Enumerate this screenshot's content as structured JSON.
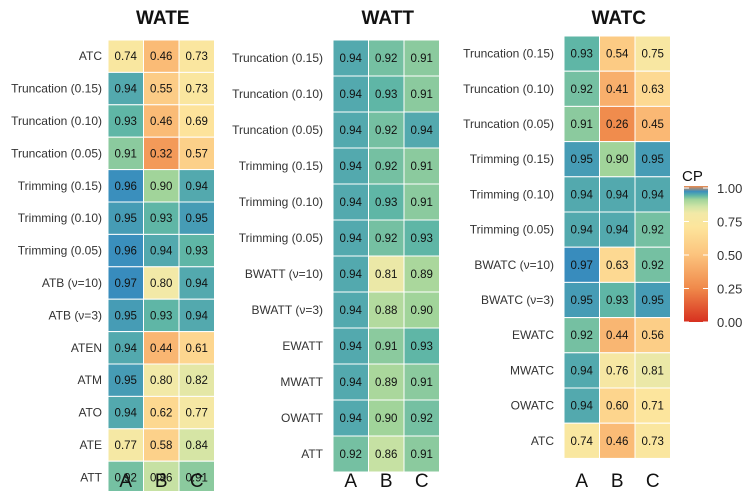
{
  "chart_data": {
    "type": "heatmap",
    "colorbar": {
      "title": "CP",
      "ticks": [
        "1.00",
        "0.75",
        "0.50",
        "0.25",
        "0.00"
      ],
      "range": [
        0,
        1
      ]
    },
    "columns": [
      "A",
      "B",
      "C"
    ],
    "panels": [
      {
        "title": "WATE",
        "rows": [
          {
            "label": "ATC",
            "values": [
              0.74,
              0.46,
              0.73
            ]
          },
          {
            "label": "Truncation (0.15)",
            "values": [
              0.94,
              0.55,
              0.73
            ]
          },
          {
            "label": "Truncation (0.10)",
            "values": [
              0.93,
              0.46,
              0.69
            ]
          },
          {
            "label": "Truncation (0.05)",
            "values": [
              0.91,
              0.32,
              0.57
            ]
          },
          {
            "label": "Trimming (0.15)",
            "values": [
              0.96,
              0.9,
              0.94
            ]
          },
          {
            "label": "Trimming (0.10)",
            "values": [
              0.95,
              0.93,
              0.95
            ]
          },
          {
            "label": "Trimming (0.05)",
            "values": [
              0.96,
              0.94,
              0.93
            ]
          },
          {
            "label": "ATB (ν=10)",
            "values": [
              0.97,
              0.8,
              0.94
            ]
          },
          {
            "label": "ATB (ν=3)",
            "values": [
              0.95,
              0.93,
              0.94
            ]
          },
          {
            "label": "ATEN",
            "values": [
              0.94,
              0.44,
              0.61
            ]
          },
          {
            "label": "ATM",
            "values": [
              0.95,
              0.8,
              0.82
            ]
          },
          {
            "label": "ATO",
            "values": [
              0.94,
              0.62,
              0.77
            ]
          },
          {
            "label": "ATE",
            "values": [
              0.77,
              0.58,
              0.84
            ]
          },
          {
            "label": "ATT",
            "values": [
              0.92,
              0.86,
              0.91
            ]
          }
        ]
      },
      {
        "title": "WATT",
        "rows": [
          {
            "label": "Truncation (0.15)",
            "values": [
              0.94,
              0.92,
              0.91
            ]
          },
          {
            "label": "Truncation (0.10)",
            "values": [
              0.94,
              0.93,
              0.91
            ]
          },
          {
            "label": "Truncation (0.05)",
            "values": [
              0.94,
              0.92,
              0.94
            ]
          },
          {
            "label": "Trimming (0.15)",
            "values": [
              0.94,
              0.92,
              0.91
            ]
          },
          {
            "label": "Trimming (0.10)",
            "values": [
              0.94,
              0.93,
              0.91
            ]
          },
          {
            "label": "Trimming (0.05)",
            "values": [
              0.94,
              0.92,
              0.93
            ]
          },
          {
            "label": "BWATT (ν=10)",
            "values": [
              0.94,
              0.81,
              0.89
            ]
          },
          {
            "label": "BWATT (ν=3)",
            "values": [
              0.94,
              0.88,
              0.9
            ]
          },
          {
            "label": "EWATT",
            "values": [
              0.94,
              0.91,
              0.93
            ]
          },
          {
            "label": "MWATT",
            "values": [
              0.94,
              0.89,
              0.91
            ]
          },
          {
            "label": "OWATT",
            "values": [
              0.94,
              0.9,
              0.92
            ]
          },
          {
            "label": "ATT",
            "values": [
              0.92,
              0.86,
              0.91
            ]
          }
        ]
      },
      {
        "title": "WATC",
        "rows": [
          {
            "label": "Truncation (0.15)",
            "values": [
              0.93,
              0.54,
              0.75
            ]
          },
          {
            "label": "Truncation (0.10)",
            "values": [
              0.92,
              0.41,
              0.63
            ]
          },
          {
            "label": "Truncation (0.05)",
            "values": [
              0.91,
              0.26,
              0.45
            ]
          },
          {
            "label": "Trimming (0.15)",
            "values": [
              0.95,
              0.9,
              0.95
            ]
          },
          {
            "label": "Trimming (0.10)",
            "values": [
              0.94,
              0.94,
              0.94
            ]
          },
          {
            "label": "Trimming (0.05)",
            "values": [
              0.94,
              0.94,
              0.92
            ]
          },
          {
            "label": "BWATC (ν=10)",
            "values": [
              0.97,
              0.63,
              0.92
            ]
          },
          {
            "label": "BWATC (ν=3)",
            "values": [
              0.95,
              0.93,
              0.95
            ]
          },
          {
            "label": "EWATC",
            "values": [
              0.92,
              0.44,
              0.56
            ]
          },
          {
            "label": "MWATC",
            "values": [
              0.94,
              0.76,
              0.81
            ]
          },
          {
            "label": "OWATC",
            "values": [
              0.94,
              0.6,
              0.71
            ]
          },
          {
            "label": "ATC",
            "values": [
              0.74,
              0.46,
              0.73
            ]
          }
        ]
      }
    ]
  }
}
